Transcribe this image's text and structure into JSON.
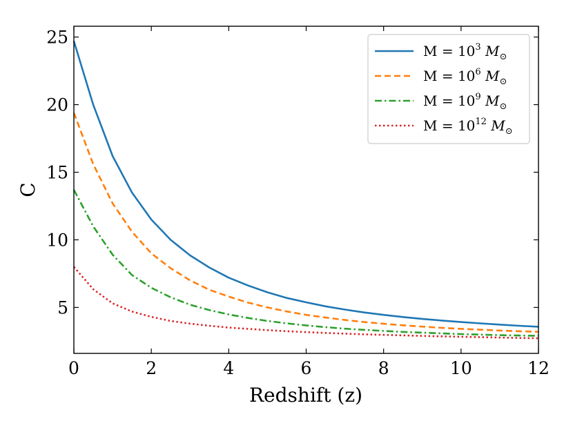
{
  "chart_data": {
    "type": "line",
    "xlabel": "Redshift (z)",
    "ylabel": "C",
    "xlim": [
      0,
      12
    ],
    "ylim": [
      1.6,
      25.8
    ],
    "xticks": [
      0,
      2,
      4,
      6,
      8,
      10,
      12
    ],
    "yticks": [
      5,
      10,
      15,
      20,
      25
    ],
    "x": [
      0,
      0.5,
      1,
      1.5,
      2,
      2.5,
      3,
      3.5,
      4,
      4.5,
      5,
      5.5,
      6,
      6.5,
      7,
      7.5,
      8,
      8.5,
      9,
      9.5,
      10,
      10.5,
      11,
      11.5,
      12
    ],
    "series": [
      {
        "name": "M = 10^3 M_⊙",
        "label_base": "10",
        "label_exp": "3",
        "color": "#1f77b4",
        "dash": "solid",
        "values": [
          24.7,
          20.0,
          16.2,
          13.5,
          11.5,
          10.0,
          8.85,
          7.95,
          7.2,
          6.62,
          6.12,
          5.7,
          5.38,
          5.08,
          4.84,
          4.63,
          4.45,
          4.29,
          4.15,
          4.03,
          3.92,
          3.82,
          3.73,
          3.64,
          3.57
        ]
      },
      {
        "name": "M = 10^6 M_⊙",
        "label_base": "10",
        "label_exp": "6",
        "color": "#ff7f0e",
        "dash": "dashed",
        "values": [
          19.4,
          15.6,
          12.7,
          10.6,
          9.0,
          7.9,
          7.0,
          6.3,
          5.8,
          5.35,
          5.0,
          4.7,
          4.45,
          4.25,
          4.07,
          3.92,
          3.79,
          3.68,
          3.58,
          3.49,
          3.42,
          3.35,
          3.29,
          3.24,
          3.2
        ]
      },
      {
        "name": "M = 10^9 M_⊙",
        "label_base": "10",
        "label_exp": "9",
        "color": "#2ca02c",
        "dash": "dashdot",
        "values": [
          13.7,
          11.0,
          8.9,
          7.4,
          6.45,
          5.75,
          5.2,
          4.8,
          4.48,
          4.22,
          4.0,
          3.82,
          3.67,
          3.54,
          3.43,
          3.34,
          3.26,
          3.19,
          3.13,
          3.08,
          3.03,
          2.99,
          2.95,
          2.92,
          2.9
        ]
      },
      {
        "name": "M = 10^12 M_⊙",
        "label_base": "10",
        "label_exp": "12",
        "color": "#d62728",
        "dash": "dotted",
        "values": [
          8.0,
          6.35,
          5.3,
          4.7,
          4.3,
          4.0,
          3.8,
          3.64,
          3.51,
          3.41,
          3.32,
          3.24,
          3.17,
          3.11,
          3.06,
          3.01,
          2.97,
          2.93,
          2.89,
          2.86,
          2.83,
          2.8,
          2.77,
          2.74,
          2.72
        ]
      }
    ],
    "legend_position": "top-right",
    "grid": false
  }
}
